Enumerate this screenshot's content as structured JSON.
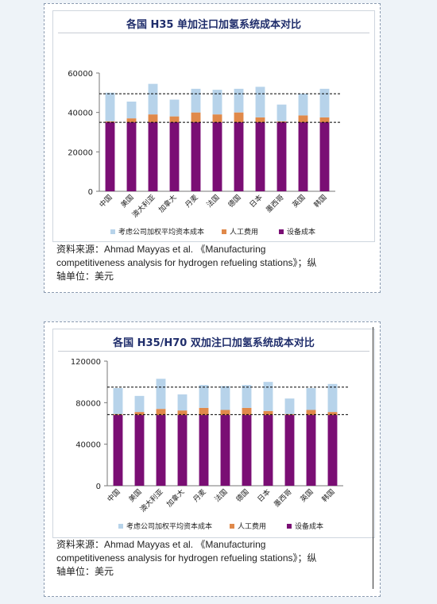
{
  "colors": {
    "equipment": "#7a0e74",
    "labor": "#e0894a",
    "capital": "#b7d3ea",
    "dash": "#000000"
  },
  "caption": {
    "line1": "资料来源：Ahmad Mayyas et al. 《Manufacturing",
    "line2": "competitiveness analysis for hydrogen refueling stations》；纵",
    "line3": "轴单位：美元"
  },
  "caption2": {
    "line1": "资料来源：Ahmad Mayyas et al. 《Manufacturing",
    "line2": "competitiveness analysis for hydrogen refueling stations》；纵",
    "line3": "轴单位：美元"
  },
  "chart_data": [
    {
      "type": "bar",
      "stacked": true,
      "title": "各国 H35 单加注口加氢系统成本对比",
      "categories": [
        "中国",
        "美国",
        "澳大利亚",
        "加拿大",
        "丹麦",
        "法国",
        "德国",
        "日本",
        "墨西哥",
        "英国",
        "韩国"
      ],
      "series": [
        {
          "name": "设备成本",
          "values": [
            35000,
            35000,
            35000,
            35000,
            35000,
            35000,
            35000,
            35000,
            35000,
            35000,
            35000
          ]
        },
        {
          "name": "人工费用",
          "values": [
            500,
            2000,
            4000,
            3000,
            5000,
            4000,
            5000,
            2500,
            500,
            3500,
            2500
          ]
        },
        {
          "name": "考虑公司加权平均资本成本",
          "values": [
            14500,
            8500,
            15500,
            8500,
            12000,
            12500,
            12000,
            15500,
            8500,
            11000,
            14500
          ]
        }
      ],
      "ylim": [
        0,
        60000
      ],
      "yticks": [
        0,
        20000,
        40000,
        60000
      ],
      "reference_lines": [
        35000,
        49500
      ],
      "legend": "bottom"
    },
    {
      "type": "bar",
      "stacked": true,
      "title": "各国 H35/H70 双加注口加氢系统成本对比",
      "categories": [
        "中国",
        "美国",
        "澳大利亚",
        "加拿大",
        "丹麦",
        "法国",
        "德国",
        "日本",
        "墨西哥",
        "英国",
        "韩国"
      ],
      "series": [
        {
          "name": "设备成本",
          "values": [
            68000,
            68000,
            68000,
            68000,
            68000,
            68000,
            68000,
            68000,
            68000,
            68000,
            68000
          ]
        },
        {
          "name": "人工费用",
          "values": [
            1000,
            3000,
            6000,
            4500,
            7000,
            5000,
            7000,
            4000,
            1000,
            5000,
            3000
          ]
        },
        {
          "name": "考虑公司加权平均资本成本",
          "values": [
            25000,
            15500,
            29000,
            15500,
            22000,
            23000,
            22000,
            28000,
            15000,
            21000,
            27000
          ]
        }
      ],
      "ylim": [
        0,
        120000
      ],
      "yticks": [
        0,
        40000,
        80000,
        120000
      ],
      "reference_lines": [
        68500,
        95000
      ],
      "legend": "bottom"
    }
  ]
}
